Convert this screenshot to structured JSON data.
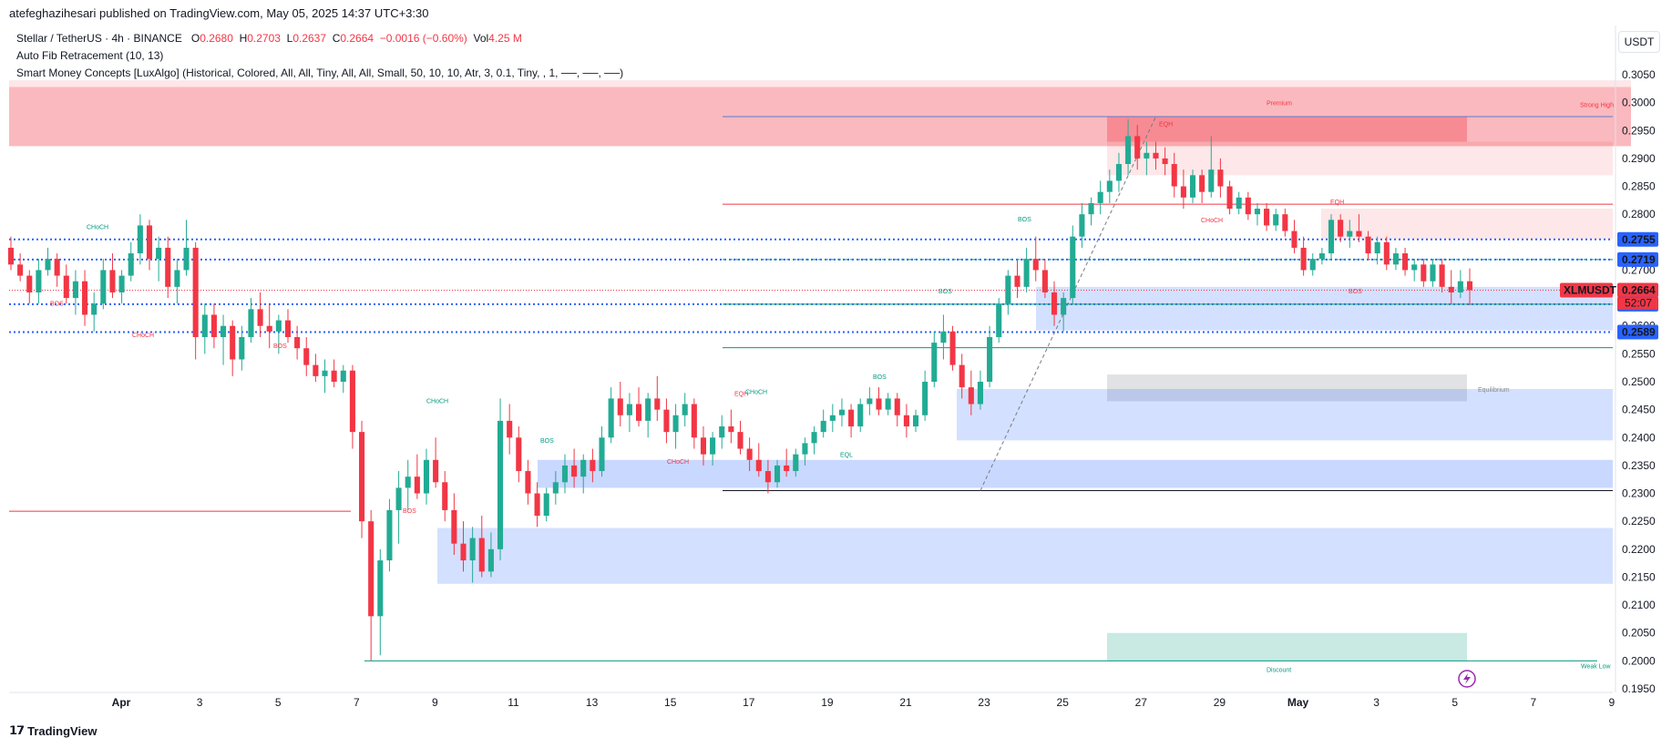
{
  "header": {
    "text": "atefeghazihesari published on TradingView.com, May 05, 2025 14:37 UTC+3:30"
  },
  "legend": {
    "symbol": "Stellar / TetherUS · 4h · BINANCE",
    "o_label": "O",
    "o": "0.2680",
    "h_label": "H",
    "h": "0.2703",
    "l_label": "L",
    "l": "0.2637",
    "c_label": "C",
    "c": "0.2664",
    "change": "−0.0016 (−0.60%)",
    "vol_label": "Vol",
    "vol": "4.25 M",
    "indicator1": "Auto Fib Retracement (10, 13)",
    "indicator2": "Smart Money Concepts [LuxAlgo] (Historical, Colored, All, All, Tiny, All, All, Small, 50, 10, 10, Atr, 3, 0.1, Tiny, , 1, ──, ──, ──)"
  },
  "currency_button": "USDT",
  "footer": {
    "brand": "TradingView"
  },
  "colors": {
    "up": "#22ab94",
    "down": "#f23645",
    "premium": "#f23645",
    "discount": "#089981",
    "fvg_blue": "#2962ff",
    "equilibrium": "#878b94",
    "price_label_blue": "#2962ff",
    "price_label_red": "#f23645"
  },
  "chart_data": {
    "type": "candlestick",
    "symbol": "XLMUSDT",
    "timeframe": "4h",
    "ylim": [
      0.195,
      0.305
    ],
    "y_ticks": [
      "0.3050",
      "0.3000",
      "0.2950",
      "0.2900",
      "0.2850",
      "0.2800",
      "0.2750",
      "0.2700",
      "0.2650",
      "0.2600",
      "0.2550",
      "0.2500",
      "0.2450",
      "0.2400",
      "0.2350",
      "0.2300",
      "0.2250",
      "0.2200",
      "0.2150",
      "0.2100",
      "0.2050",
      "0.2000",
      "0.1950"
    ],
    "x_ticks": [
      "Apr",
      "3",
      "5",
      "7",
      "9",
      "11",
      "13",
      "15",
      "17",
      "19",
      "21",
      "23",
      "25",
      "27",
      "29",
      "May",
      "3",
      "5",
      "7",
      "9"
    ],
    "candles": [
      [
        0.274,
        0.276,
        0.27,
        0.271
      ],
      [
        0.271,
        0.273,
        0.268,
        0.269
      ],
      [
        0.269,
        0.27,
        0.264,
        0.266
      ],
      [
        0.266,
        0.272,
        0.264,
        0.27
      ],
      [
        0.27,
        0.274,
        0.269,
        0.272
      ],
      [
        0.272,
        0.273,
        0.267,
        0.269
      ],
      [
        0.269,
        0.271,
        0.264,
        0.265
      ],
      [
        0.265,
        0.27,
        0.262,
        0.268
      ],
      [
        0.268,
        0.27,
        0.26,
        0.262
      ],
      [
        0.262,
        0.266,
        0.259,
        0.264
      ],
      [
        0.264,
        0.272,
        0.263,
        0.27
      ],
      [
        0.27,
        0.273,
        0.265,
        0.266
      ],
      [
        0.266,
        0.27,
        0.264,
        0.269
      ],
      [
        0.269,
        0.275,
        0.268,
        0.273
      ],
      [
        0.273,
        0.28,
        0.271,
        0.278
      ],
      [
        0.278,
        0.279,
        0.27,
        0.272
      ],
      [
        0.272,
        0.276,
        0.268,
        0.274
      ],
      [
        0.274,
        0.276,
        0.265,
        0.267
      ],
      [
        0.267,
        0.272,
        0.264,
        0.27
      ],
      [
        0.27,
        0.279,
        0.269,
        0.274
      ],
      [
        0.274,
        0.275,
        0.254,
        0.258
      ],
      [
        0.258,
        0.264,
        0.255,
        0.262
      ],
      [
        0.262,
        0.264,
        0.256,
        0.258
      ],
      [
        0.258,
        0.262,
        0.253,
        0.26
      ],
      [
        0.26,
        0.261,
        0.251,
        0.254
      ],
      [
        0.254,
        0.26,
        0.252,
        0.258
      ],
      [
        0.258,
        0.265,
        0.257,
        0.263
      ],
      [
        0.263,
        0.266,
        0.258,
        0.26
      ],
      [
        0.26,
        0.264,
        0.256,
        0.259
      ],
      [
        0.259,
        0.262,
        0.255,
        0.261
      ],
      [
        0.261,
        0.263,
        0.257,
        0.258
      ],
      [
        0.258,
        0.26,
        0.254,
        0.256
      ],
      [
        0.256,
        0.258,
        0.251,
        0.253
      ],
      [
        0.253,
        0.255,
        0.25,
        0.251
      ],
      [
        0.251,
        0.254,
        0.248,
        0.252
      ],
      [
        0.252,
        0.254,
        0.249,
        0.25
      ],
      [
        0.25,
        0.253,
        0.248,
        0.252
      ],
      [
        0.252,
        0.253,
        0.238,
        0.241
      ],
      [
        0.241,
        0.243,
        0.222,
        0.225
      ],
      [
        0.225,
        0.227,
        0.2,
        0.208
      ],
      [
        0.208,
        0.22,
        0.201,
        0.218
      ],
      [
        0.218,
        0.229,
        0.216,
        0.227
      ],
      [
        0.227,
        0.234,
        0.221,
        0.231
      ],
      [
        0.231,
        0.236,
        0.227,
        0.233
      ],
      [
        0.233,
        0.237,
        0.229,
        0.23
      ],
      [
        0.23,
        0.238,
        0.228,
        0.236
      ],
      [
        0.236,
        0.24,
        0.231,
        0.232
      ],
      [
        0.232,
        0.234,
        0.225,
        0.227
      ],
      [
        0.227,
        0.23,
        0.219,
        0.221
      ],
      [
        0.221,
        0.225,
        0.216,
        0.218
      ],
      [
        0.218,
        0.224,
        0.214,
        0.222
      ],
      [
        0.222,
        0.226,
        0.215,
        0.216
      ],
      [
        0.216,
        0.223,
        0.215,
        0.22
      ],
      [
        0.22,
        0.247,
        0.218,
        0.243
      ],
      [
        0.243,
        0.246,
        0.237,
        0.24
      ],
      [
        0.24,
        0.242,
        0.232,
        0.234
      ],
      [
        0.234,
        0.236,
        0.228,
        0.23
      ],
      [
        0.23,
        0.232,
        0.224,
        0.226
      ],
      [
        0.226,
        0.231,
        0.225,
        0.23
      ],
      [
        0.23,
        0.234,
        0.228,
        0.232
      ],
      [
        0.232,
        0.237,
        0.23,
        0.235
      ],
      [
        0.235,
        0.238,
        0.231,
        0.233
      ],
      [
        0.233,
        0.237,
        0.23,
        0.236
      ],
      [
        0.236,
        0.238,
        0.232,
        0.234
      ],
      [
        0.234,
        0.242,
        0.233,
        0.24
      ],
      [
        0.24,
        0.249,
        0.239,
        0.247
      ],
      [
        0.247,
        0.25,
        0.242,
        0.244
      ],
      [
        0.244,
        0.248,
        0.241,
        0.246
      ],
      [
        0.246,
        0.249,
        0.242,
        0.243
      ],
      [
        0.243,
        0.248,
        0.24,
        0.247
      ],
      [
        0.247,
        0.251,
        0.243,
        0.245
      ],
      [
        0.245,
        0.247,
        0.239,
        0.241
      ],
      [
        0.241,
        0.246,
        0.238,
        0.244
      ],
      [
        0.244,
        0.248,
        0.242,
        0.246
      ],
      [
        0.246,
        0.247,
        0.238,
        0.24
      ],
      [
        0.24,
        0.242,
        0.235,
        0.237
      ],
      [
        0.237,
        0.241,
        0.235,
        0.24
      ],
      [
        0.24,
        0.244,
        0.238,
        0.242
      ],
      [
        0.242,
        0.245,
        0.239,
        0.241
      ],
      [
        0.241,
        0.243,
        0.237,
        0.238
      ],
      [
        0.238,
        0.24,
        0.234,
        0.236
      ],
      [
        0.236,
        0.239,
        0.233,
        0.234
      ],
      [
        0.234,
        0.236,
        0.23,
        0.232
      ],
      [
        0.232,
        0.236,
        0.231,
        0.235
      ],
      [
        0.235,
        0.238,
        0.233,
        0.234
      ],
      [
        0.234,
        0.238,
        0.233,
        0.237
      ],
      [
        0.237,
        0.24,
        0.235,
        0.239
      ],
      [
        0.239,
        0.242,
        0.237,
        0.241
      ],
      [
        0.241,
        0.245,
        0.24,
        0.243
      ],
      [
        0.243,
        0.246,
        0.241,
        0.244
      ],
      [
        0.244,
        0.247,
        0.242,
        0.245
      ],
      [
        0.245,
        0.246,
        0.24,
        0.242
      ],
      [
        0.242,
        0.247,
        0.241,
        0.246
      ],
      [
        0.246,
        0.249,
        0.244,
        0.247
      ],
      [
        0.247,
        0.249,
        0.244,
        0.245
      ],
      [
        0.245,
        0.248,
        0.244,
        0.247
      ],
      [
        0.247,
        0.248,
        0.242,
        0.244
      ],
      [
        0.244,
        0.246,
        0.24,
        0.242
      ],
      [
        0.242,
        0.245,
        0.241,
        0.244
      ],
      [
        0.244,
        0.252,
        0.243,
        0.25
      ],
      [
        0.25,
        0.259,
        0.249,
        0.257
      ],
      [
        0.257,
        0.262,
        0.254,
        0.259
      ],
      [
        0.259,
        0.26,
        0.252,
        0.253
      ],
      [
        0.253,
        0.255,
        0.247,
        0.249
      ],
      [
        0.249,
        0.252,
        0.244,
        0.246
      ],
      [
        0.246,
        0.252,
        0.245,
        0.25
      ],
      [
        0.25,
        0.26,
        0.249,
        0.258
      ],
      [
        0.258,
        0.265,
        0.257,
        0.264
      ],
      [
        0.264,
        0.27,
        0.262,
        0.269
      ],
      [
        0.269,
        0.272,
        0.265,
        0.267
      ],
      [
        0.267,
        0.274,
        0.266,
        0.272
      ],
      [
        0.272,
        0.276,
        0.268,
        0.27
      ],
      [
        0.27,
        0.272,
        0.265,
        0.266
      ],
      [
        0.266,
        0.268,
        0.26,
        0.262
      ],
      [
        0.262,
        0.266,
        0.259,
        0.265
      ],
      [
        0.265,
        0.278,
        0.264,
        0.276
      ],
      [
        0.276,
        0.282,
        0.274,
        0.28
      ],
      [
        0.28,
        0.283,
        0.278,
        0.282
      ],
      [
        0.282,
        0.286,
        0.28,
        0.284
      ],
      [
        0.284,
        0.288,
        0.282,
        0.286
      ],
      [
        0.286,
        0.291,
        0.284,
        0.289
      ],
      [
        0.289,
        0.297,
        0.287,
        0.294
      ],
      [
        0.294,
        0.296,
        0.288,
        0.29
      ],
      [
        0.29,
        0.293,
        0.287,
        0.291
      ],
      [
        0.291,
        0.293,
        0.288,
        0.29
      ],
      [
        0.29,
        0.292,
        0.287,
        0.289
      ],
      [
        0.289,
        0.291,
        0.283,
        0.285
      ],
      [
        0.285,
        0.288,
        0.281,
        0.283
      ],
      [
        0.283,
        0.288,
        0.282,
        0.287
      ],
      [
        0.287,
        0.288,
        0.282,
        0.284
      ],
      [
        0.284,
        0.294,
        0.283,
        0.288
      ],
      [
        0.288,
        0.29,
        0.283,
        0.285
      ],
      [
        0.285,
        0.286,
        0.28,
        0.281
      ],
      [
        0.281,
        0.284,
        0.28,
        0.283
      ],
      [
        0.283,
        0.284,
        0.279,
        0.28
      ],
      [
        0.28,
        0.282,
        0.278,
        0.281
      ],
      [
        0.281,
        0.282,
        0.277,
        0.278
      ],
      [
        0.278,
        0.281,
        0.277,
        0.28
      ],
      [
        0.28,
        0.281,
        0.276,
        0.277
      ],
      [
        0.277,
        0.279,
        0.273,
        0.274
      ],
      [
        0.274,
        0.276,
        0.269,
        0.27
      ],
      [
        0.27,
        0.273,
        0.269,
        0.272
      ],
      [
        0.272,
        0.274,
        0.271,
        0.273
      ],
      [
        0.273,
        0.28,
        0.272,
        0.279
      ],
      [
        0.279,
        0.28,
        0.275,
        0.276
      ],
      [
        0.276,
        0.279,
        0.274,
        0.277
      ],
      [
        0.277,
        0.28,
        0.275,
        0.276
      ],
      [
        0.276,
        0.277,
        0.272,
        0.273
      ],
      [
        0.273,
        0.276,
        0.271,
        0.275
      ],
      [
        0.275,
        0.276,
        0.27,
        0.271
      ],
      [
        0.271,
        0.274,
        0.27,
        0.273
      ],
      [
        0.273,
        0.274,
        0.269,
        0.27
      ],
      [
        0.27,
        0.272,
        0.268,
        0.271
      ],
      [
        0.271,
        0.272,
        0.267,
        0.268
      ],
      [
        0.268,
        0.272,
        0.267,
        0.271
      ],
      [
        0.271,
        0.272,
        0.266,
        0.267
      ],
      [
        0.267,
        0.27,
        0.264,
        0.266
      ],
      [
        0.266,
        0.27,
        0.265,
        0.268
      ],
      [
        0.268,
        0.2703,
        0.2637,
        0.2664
      ]
    ],
    "levels": [
      {
        "label": "0.2755",
        "value": 0.2755,
        "color": "#2962ff"
      },
      {
        "label": "0.2719",
        "value": 0.2719,
        "color": "#2962ff"
      },
      {
        "label": "0.2664",
        "value": 0.2664,
        "color": "#f23645"
      },
      {
        "label": "0.2639",
        "value": 0.2639,
        "color": "#2962ff"
      },
      {
        "label": "0.2589",
        "value": 0.2589,
        "color": "#2962ff"
      }
    ],
    "last_price": {
      "symbol": "XLMUSDT",
      "price": "0.2664",
      "countdown": "52:07"
    },
    "annotations": {
      "premium": "Premium",
      "equilibrium": "Equilibrium",
      "discount": "Discount",
      "strong_high": "Strong High",
      "weak_low": "Weak Low",
      "choch": "CHoCH",
      "bos": "BOS",
      "eqh": "EQH",
      "eql": "EQL"
    }
  }
}
